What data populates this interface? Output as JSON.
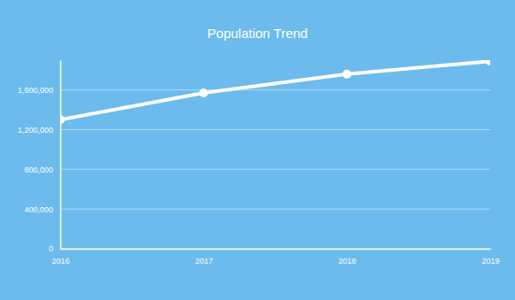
{
  "chart_data": {
    "type": "line",
    "title": "Population Trend",
    "x": [
      2016,
      2017,
      2018,
      2019
    ],
    "values": [
      1300000,
      1570000,
      1760000,
      1890000
    ],
    "color": "#ffffff",
    "marker": "circle",
    "xlim": [
      2016,
      2019
    ],
    "xticks": [
      2016,
      2017,
      2018,
      2019
    ],
    "ylim": [
      0,
      1900000
    ],
    "yticks": [
      0,
      {
        "value": 400000,
        "label": "400,000"
      },
      {
        "value": 800000,
        "label": "800,000"
      },
      {
        "value": 1200000,
        "label": "1,200,000"
      },
      {
        "value": 1600000,
        "label": "1,600,000"
      }
    ],
    "grid": true
  }
}
